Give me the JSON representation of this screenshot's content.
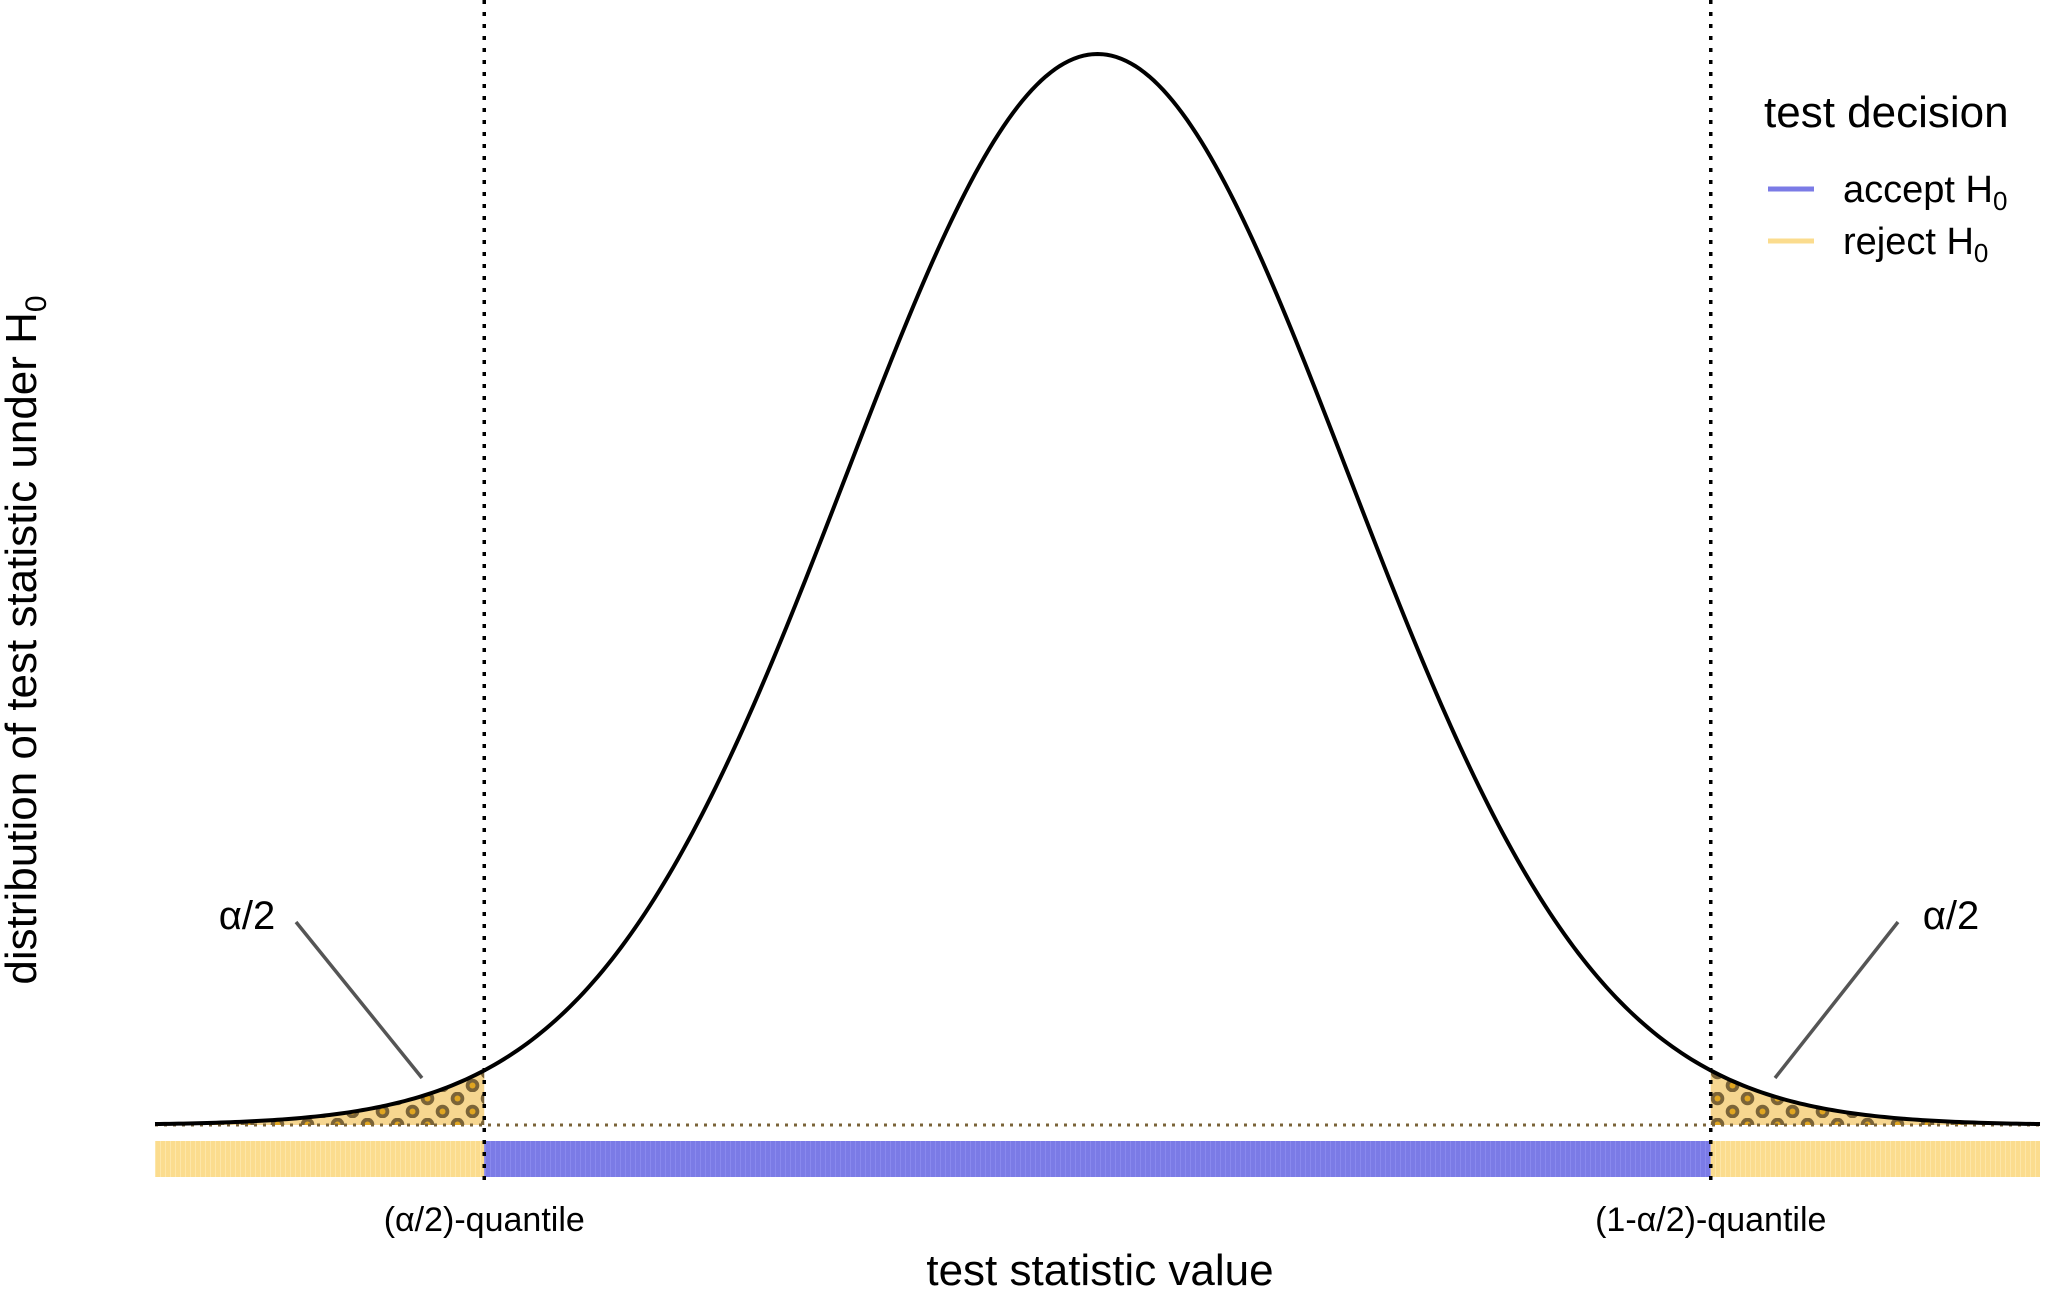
{
  "chart_data": {
    "type": "area",
    "distribution": "normal",
    "mean": 0,
    "sd": 1,
    "xlim": [
      -3.75,
      3.75
    ],
    "critical_values": [
      -2.44,
      2.44
    ],
    "xlabel": "test statistic value",
    "ylabel": "distribution of test statistic under H",
    "ylabel_sub": "0",
    "tick_labels": [
      "(α/2)-quantile",
      "(1-α/2)-quantile"
    ],
    "annotations": [
      {
        "name": "left-alpha-annotation",
        "text": "α/2",
        "region": "lower-tail"
      },
      {
        "name": "right-alpha-annotation",
        "text": "α/2",
        "region": "upper-tail"
      }
    ],
    "decision_bar": [
      {
        "from": -3.75,
        "to": -2.44,
        "decision": "reject"
      },
      {
        "from": -2.44,
        "to": 2.44,
        "decision": "accept"
      },
      {
        "from": 2.44,
        "to": 3.75,
        "decision": "reject"
      }
    ],
    "legend": {
      "title": "test decision",
      "position": "top-right",
      "items": [
        {
          "label": "accept H",
          "sub": "0",
          "color": "#7b7be6"
        },
        {
          "label": "reject H",
          "sub": "0",
          "color": "#fbdc8e"
        }
      ]
    },
    "grid": false,
    "colors": {
      "curve": "#000000",
      "accept": "#7b7be6",
      "reject": "#fbdc8e",
      "tail_fill": "#f6d690",
      "tail_pattern": "#7a6338",
      "tail_pattern_dot": "#e0a520",
      "critical_line": "#000000",
      "leader": "#555555"
    }
  }
}
